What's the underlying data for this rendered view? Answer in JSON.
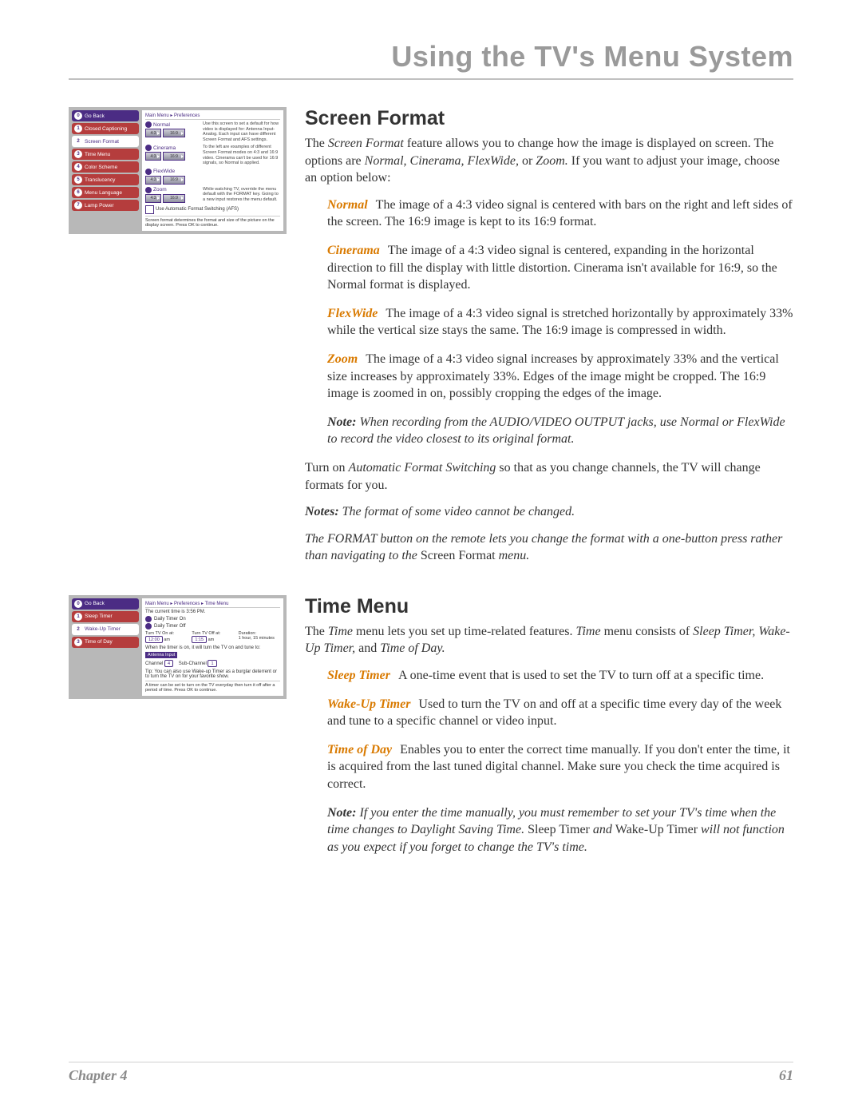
{
  "header": {
    "title": "Using the TV's Menu System"
  },
  "footer": {
    "chapter": "Chapter 4",
    "page": "61"
  },
  "colors": {
    "header_gray": "#9a9a9a",
    "accent_orange": "#d97a00",
    "menu_purple": "#4b2c84",
    "menu_red": "#b53d3d",
    "thumb_bg": "#b8b8b8"
  },
  "thumb1": {
    "breadcrumb": "Main Menu ▸ Preferences",
    "menu": [
      {
        "n": "0",
        "label": "Go Back",
        "active": false
      },
      {
        "n": "1",
        "label": "Closed Captioning",
        "active": true
      },
      {
        "n": "2",
        "label": "Screen Format",
        "active": false,
        "white": true
      },
      {
        "n": "3",
        "label": "Time Menu",
        "active": true
      },
      {
        "n": "4",
        "label": "Color Scheme",
        "active": true
      },
      {
        "n": "5",
        "label": "Translucency",
        "active": true
      },
      {
        "n": "6",
        "label": "Menu Language",
        "active": true
      },
      {
        "n": "7",
        "label": "Lamp Power",
        "active": true
      }
    ],
    "formats": [
      {
        "name": "Normal",
        "b1": "4:3",
        "b2": "16:9",
        "desc": "Use this screen to set a default for how video is displayed for: Antenna Input- Analog. Each input can have different Screen Format and AFS settings."
      },
      {
        "name": "Cinerama",
        "b1": "4:3",
        "b2": "16:9",
        "desc": "To the left are examples of different Screen Format modes on 4:3 and 16:9 video. Cinerama can't be used for 16:9 signals, so Normal is applied."
      },
      {
        "name": "FlexWide",
        "b1": "4:3",
        "b2": "16:9",
        "desc": ""
      },
      {
        "name": "Zoom",
        "b1": "4:3",
        "b2": "16:9",
        "desc": "While watching TV, override the menu default with the FORMAT key. Going to a new input restores the menu default."
      }
    ],
    "afs": "Use Automatic Format Switching (AFS)",
    "footer": "Screen format determines the format and size of the picture on the display screen. Press OK to continue."
  },
  "thumb2": {
    "breadcrumb": "Main Menu ▸ Preferences ▸ Time Menu",
    "menu": [
      {
        "n": "0",
        "label": "Go Back",
        "active": false
      },
      {
        "n": "1",
        "label": "Sleep Timer",
        "active": true
      },
      {
        "n": "2",
        "label": "Wake-Up Timer",
        "active": false,
        "white": true
      },
      {
        "n": "3",
        "label": "Time of Day",
        "active": true
      }
    ],
    "current_time": "The current time is 3:56 PM.",
    "r1": "Daily Timer On",
    "r2": "Daily Timer Off",
    "c1": "Turn TV On at:",
    "c2": "Turn TV Off at:",
    "c3": "Duration:",
    "v1": "12:00",
    "ap1": "am",
    "v2": "1:15",
    "ap2": "am",
    "dur": "1 hour, 15 minutes",
    "when": "When the timer is on, it will turn the TV on and tune to:",
    "ant": "Antenna Input",
    "ch_l": "Channel",
    "ch_v": "4",
    "sub_l": "Sub-Channel",
    "sub_v": "1",
    "tip": "Tip: You can also use Wake-up Timer as a burglar deterrent or to turn the TV on for your favorite show.",
    "footer": "A timer can be set to turn on the TV everyday then turn it off after a period of time. Press OK to continue."
  },
  "section1": {
    "title": "Screen Format",
    "lead_a": "The ",
    "lead_b": "Screen Format",
    "lead_c": " feature allows you to change how the image is displayed on screen. The options are ",
    "lead_d": "Normal, Cinerama, FlexWide,",
    "lead_e": " or ",
    "lead_f": "Zoom.",
    "lead_g": " If you want to adjust your image, choose an option below:",
    "items": [
      {
        "term": "Normal",
        "text": "The image of a 4:3 video signal is centered with bars on the right and left sides of the screen. The 16:9 image is kept to its 16:9 format."
      },
      {
        "term": "Cinerama",
        "text": "The image of a 4:3 video signal is centered, expanding in the horizontal direction to fill the display with little distortion. Cinerama isn't available for 16:9, so the Normal format is displayed."
      },
      {
        "term": "FlexWide",
        "text": "The image of a 4:3 video signal is stretched horizontally by approximately 33% while the vertical size stays the same. The 16:9 image is compressed in width."
      },
      {
        "term": "Zoom",
        "text": "The image of a 4:3 video signal increases by approximately 33% and the vertical size increases by approximately 33%. Edges of the image might be cropped. The 16:9 image is zoomed in on, possibly cropping the edges of the image."
      }
    ],
    "note1_a": "Note:",
    "note1_b": " When recording from the AUDIO/VIDEO OUTPUT jacks, use Normal or FlexWide to record the video closest to its original format.",
    "para_a": "Turn on ",
    "para_b": "Automatic Format Switching",
    "para_c": " so that as you change channels, the TV will change formats for you.",
    "notes2_a": "Notes:",
    "notes2_b": " The format of some video cannot be changed.",
    "notes3_a": "The FORMAT button on the remote lets you change the format with a one-button press rather than navigating to the ",
    "notes3_b": "Screen Format",
    "notes3_c": " menu."
  },
  "section2": {
    "title": "Time Menu",
    "lead_a": "The ",
    "lead_b": "Time",
    "lead_c": " menu lets you set up time-related features. ",
    "lead_d": "Time",
    "lead_e": " menu consists of ",
    "lead_f": "Sleep Timer, Wake-Up Timer,",
    "lead_g": " and ",
    "lead_h": "Time of Day.",
    "items": [
      {
        "term": "Sleep Timer",
        "text": "A one-time event that is used to set the TV to turn off at a specific time."
      },
      {
        "term": "Wake-Up Timer",
        "text": "Used to turn the TV on and off at a specific time every day of the week and tune to a specific channel or video input."
      },
      {
        "term": "Time of Day",
        "text": "Enables you to enter the correct time manually. If you don't enter the time, it is acquired from the last tuned digital channel. Make sure you check the time acquired is correct."
      }
    ],
    "note_a": "Note:",
    "note_b": " If you enter the time manually, you must remember to set your TV's time when the time changes to Daylight Saving Time. ",
    "note_c": "Sleep Timer",
    "note_d": " and ",
    "note_e": "Wake-Up Timer",
    "note_f": " will not function as you expect if you forget to change the TV's time."
  }
}
